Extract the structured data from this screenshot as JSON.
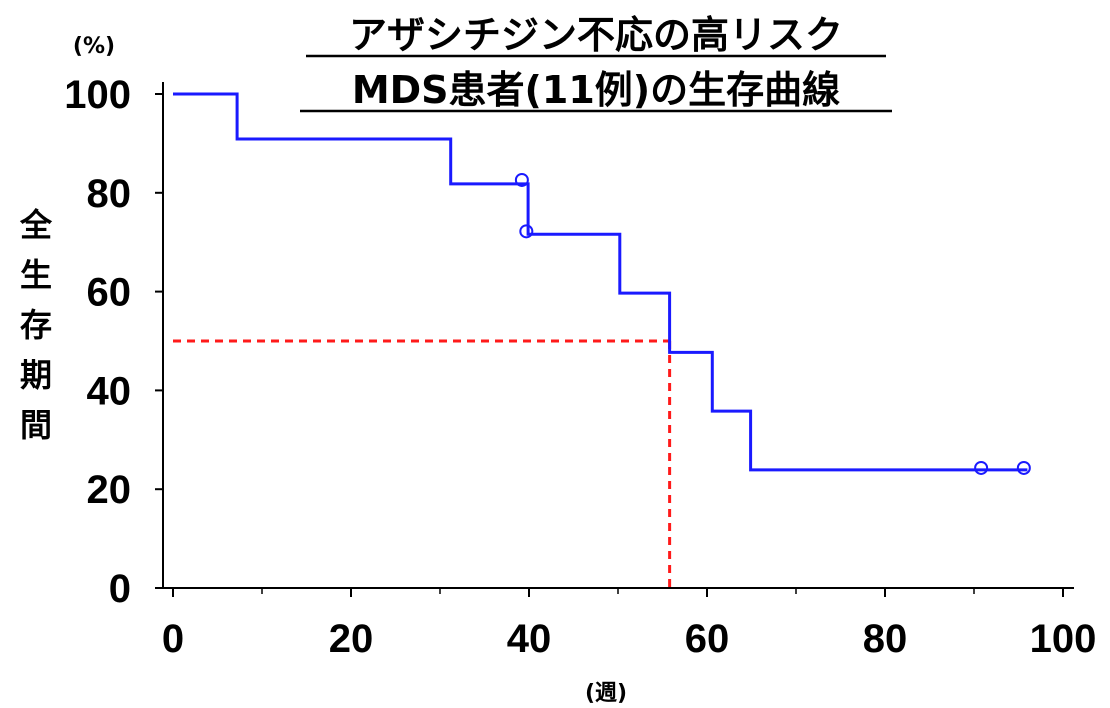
{
  "chart_data": {
    "type": "line",
    "title_lines": [
      "アザシチジン不応の高リスク",
      "MDS患者(11例)の生存曲線"
    ],
    "ylabel_chars": [
      "全",
      "生",
      "存",
      "期",
      "間"
    ],
    "y_unit": "(%)",
    "x_unit": "(週)",
    "xlim": [
      0,
      100
    ],
    "ylim": [
      0,
      100
    ],
    "x_ticks": [
      "0",
      "20",
      "40",
      "60",
      "80",
      "100"
    ],
    "y_ticks": [
      "0",
      "20",
      "40",
      "60",
      "80",
      "100"
    ],
    "grid": false,
    "series": [
      {
        "color": "#1a1aff",
        "step_points": [
          [
            0,
            100
          ],
          [
            7.2,
            100
          ],
          [
            7.2,
            90.9
          ],
          [
            31.2,
            90.9
          ],
          [
            31.2,
            81.8
          ],
          [
            39.9,
            81.8
          ],
          [
            39.9,
            71.6
          ],
          [
            50.2,
            71.6
          ],
          [
            50.2,
            59.7
          ],
          [
            55.8,
            59.7
          ],
          [
            55.8,
            47.7
          ],
          [
            60.6,
            47.7
          ],
          [
            60.6,
            35.8
          ],
          [
            64.9,
            35.8
          ],
          [
            64.9,
            23.9
          ],
          [
            96.0,
            23.9
          ]
        ],
        "censored": [
          [
            39.2,
            82.6
          ],
          [
            39.7,
            72.2
          ],
          [
            90.8,
            24.3
          ],
          [
            95.6,
            24.3
          ]
        ]
      }
    ],
    "reference_lines": {
      "color": "#ff1a1a",
      "median_y": 50,
      "median_x": 55.8
    }
  }
}
